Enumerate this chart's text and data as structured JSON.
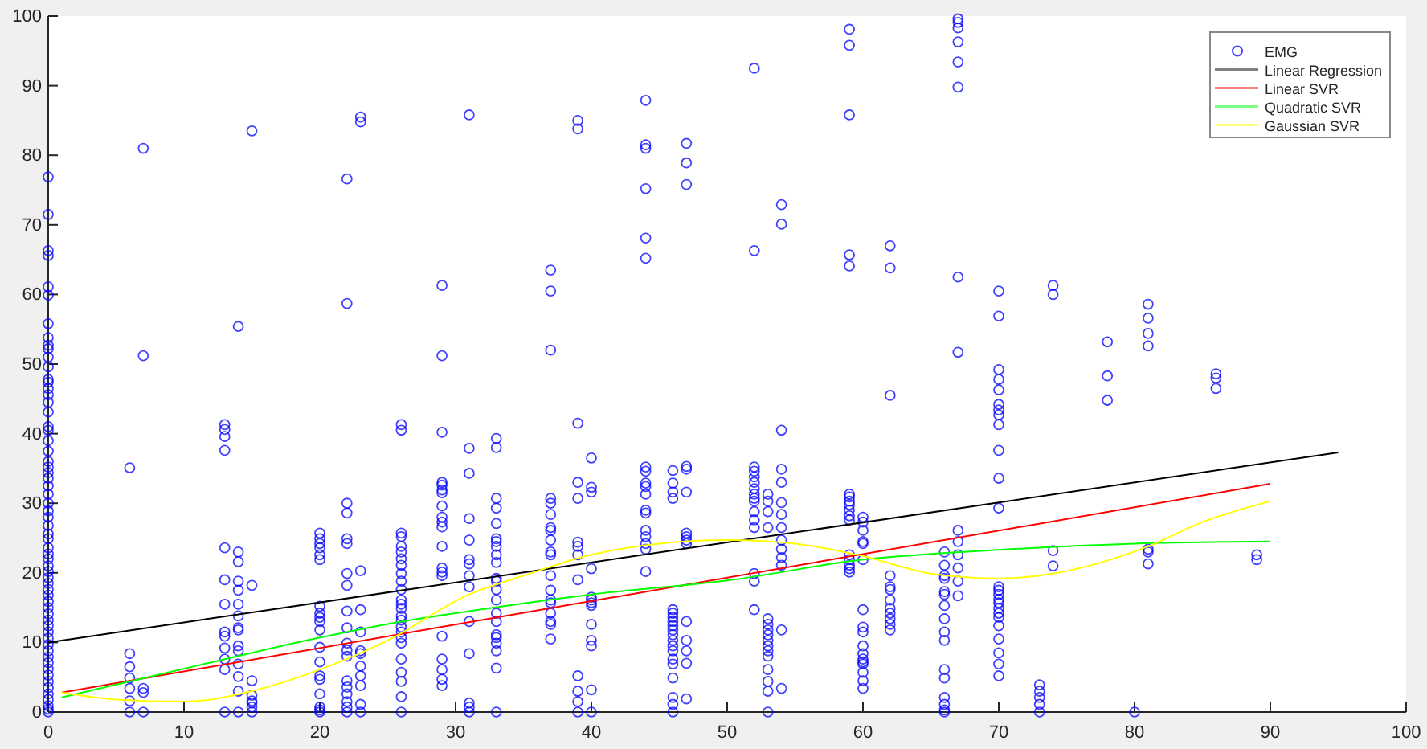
{
  "chart_data": {
    "type": "scatter",
    "xlim": [
      0,
      100
    ],
    "xticks": [
      0,
      10,
      20,
      30,
      40,
      50,
      60,
      70,
      80,
      90,
      100
    ],
    "ylim": [
      0,
      100
    ],
    "yticks": [
      0,
      10,
      20,
      30,
      40,
      50,
      60,
      70,
      80,
      90,
      100
    ],
    "grid": false,
    "legend": "top right",
    "series": [
      {
        "name": "EMG",
        "color": "#0000ff",
        "marker": "circle",
        "x": [
          0,
          0,
          0,
          0,
          0,
          0,
          0,
          0,
          0,
          0,
          0,
          0,
          0,
          0,
          0,
          0,
          0,
          0,
          0,
          0,
          0,
          0,
          0,
          0,
          0,
          0,
          0,
          0,
          0,
          0,
          0,
          0,
          0,
          0,
          0,
          0,
          0,
          0,
          0,
          0,
          0,
          0,
          0,
          0,
          0,
          0,
          0,
          0,
          0,
          0,
          0,
          0,
          0,
          0,
          0,
          0,
          0,
          0,
          0,
          0,
          0,
          0,
          0,
          6,
          6,
          6,
          6,
          6,
          6,
          6,
          7,
          7,
          7,
          7,
          7,
          13,
          13,
          13,
          13,
          13,
          13,
          13,
          13,
          13,
          13,
          13,
          13,
          13,
          14,
          14,
          14,
          14,
          14,
          14,
          14,
          14,
          14,
          14,
          14,
          14,
          14,
          14,
          14,
          15,
          15,
          15,
          15,
          15,
          15,
          15,
          15,
          20,
          20,
          20,
          20,
          20,
          20,
          20,
          20,
          20,
          20,
          20,
          20,
          20,
          20,
          20,
          20,
          20,
          20,
          20,
          22,
          22,
          22,
          22,
          22,
          22,
          22,
          22,
          22,
          22,
          22,
          22,
          22,
          22,
          22,
          22,
          22,
          22,
          22,
          23,
          23,
          23,
          23,
          23,
          23,
          23,
          23,
          23,
          23,
          23,
          23,
          26,
          26,
          26,
          26,
          26,
          26,
          26,
          26,
          26,
          26,
          26,
          26,
          26,
          26,
          26,
          26,
          26,
          26,
          26,
          26,
          26,
          26,
          26,
          26,
          26,
          29,
          29,
          29,
          29,
          29,
          29,
          29,
          29,
          29,
          29,
          29,
          29,
          29,
          29,
          29,
          29,
          29,
          29,
          29,
          29,
          31,
          31,
          31,
          31,
          31,
          31,
          31,
          31,
          31,
          31,
          31,
          31,
          31,
          31,
          33,
          33,
          33,
          33,
          33,
          33,
          33,
          33,
          33,
          33,
          33,
          33,
          33,
          33,
          33,
          33,
          33,
          33,
          33,
          33,
          33,
          33,
          37,
          37,
          37,
          37,
          37,
          37,
          37,
          37,
          37,
          37,
          37,
          37,
          37,
          37,
          37,
          37,
          37,
          37,
          37,
          39,
          39,
          39,
          39,
          39,
          39,
          39,
          39,
          39,
          39,
          39,
          39,
          39,
          40,
          40,
          40,
          40,
          40,
          40,
          40,
          40,
          40,
          40,
          40,
          40,
          40,
          44,
          44,
          44,
          44,
          44,
          44,
          44,
          44,
          44,
          44,
          44,
          44,
          44,
          44,
          44,
          44,
          44,
          44,
          46,
          46,
          46,
          46,
          46,
          46,
          46,
          46,
          46,
          46,
          46,
          46,
          46,
          46,
          46,
          46,
          46,
          46,
          46,
          46,
          47,
          47,
          47,
          47,
          47,
          47,
          47,
          47,
          47,
          47,
          47,
          47,
          47,
          47,
          47,
          52,
          52,
          52,
          52,
          52,
          52,
          52,
          52,
          52,
          52,
          52,
          52,
          52,
          52,
          52,
          52,
          53,
          53,
          53,
          53,
          53,
          53,
          53,
          53,
          53,
          53,
          53,
          53,
          53,
          53,
          53,
          53,
          54,
          54,
          54,
          54,
          54,
          54,
          54,
          54,
          54,
          54,
          54,
          54,
          54,
          54,
          59,
          59,
          59,
          59,
          59,
          59,
          59,
          59,
          59,
          59,
          59,
          59,
          59,
          59,
          59,
          59,
          59,
          60,
          60,
          60,
          60,
          60,
          60,
          60,
          60,
          60,
          60,
          60,
          60,
          60,
          60,
          60,
          60,
          60,
          62,
          62,
          62,
          62,
          62,
          62,
          62,
          62,
          62,
          62,
          62,
          62,
          66,
          66,
          66,
          66,
          66,
          66,
          66,
          66,
          66,
          66,
          66,
          66,
          66,
          66,
          66,
          66,
          67,
          67,
          67,
          67,
          67,
          67,
          67,
          67,
          67,
          67,
          67,
          67,
          67,
          67,
          70,
          70,
          70,
          70,
          70,
          70,
          70,
          70,
          70,
          70,
          70,
          70,
          70,
          70,
          70,
          70,
          70,
          70,
          70,
          70,
          70,
          70,
          70,
          70,
          70,
          73,
          73,
          73,
          73,
          73,
          74,
          74,
          74,
          74,
          78,
          78,
          78,
          80,
          81,
          81,
          81,
          81,
          81,
          81,
          81,
          86,
          86,
          86,
          89,
          89
        ],
        "values": [
          76.9,
          71.5,
          66.3,
          65.6,
          61.1,
          59.9,
          55.8,
          53.8,
          52.7,
          52.2,
          51.0,
          49.6,
          47.8,
          47.4,
          46.5,
          45.6,
          44.5,
          43.1,
          41.0,
          40.5,
          39.0,
          37.5,
          36.0,
          35.2,
          34.4,
          33.6,
          32.5,
          31.3,
          30.0,
          28.9,
          28.0,
          26.8,
          25.6,
          24.9,
          23.6,
          22.7,
          22.0,
          21.0,
          20.2,
          19.3,
          18.5,
          17.6,
          16.8,
          15.9,
          15.0,
          14.1,
          13.2,
          12.4,
          11.5,
          10.6,
          9.7,
          8.8,
          7.9,
          7.1,
          6.2,
          5.3,
          4.4,
          3.5,
          2.6,
          1.8,
          0.9,
          0.4,
          0,
          35.1,
          8.4,
          6.5,
          4.9,
          3.4,
          1.6,
          0,
          81,
          51.2,
          3.4,
          2.8,
          0,
          41.3,
          40.6,
          39.6,
          37.6,
          23.6,
          19,
          15.5,
          11.5,
          10.9,
          9.2,
          7.6,
          6.1,
          0,
          55.4,
          23,
          21.6,
          18.8,
          17.5,
          15.5,
          13.8,
          12.1,
          11.8,
          9.5,
          8.8,
          6.9,
          5.1,
          3,
          0,
          83.5,
          18.2,
          4.5,
          2.4,
          1.6,
          1.3,
          0.7,
          0,
          25.7,
          24.9,
          24.2,
          23.6,
          22.6,
          21.9,
          15.2,
          14.2,
          13.6,
          13,
          11.8,
          9.3,
          7.2,
          5.2,
          4.7,
          2.6,
          0.7,
          0.3,
          0,
          76.6,
          58.7,
          30,
          28.6,
          24.9,
          24.2,
          19.9,
          18.2,
          14.5,
          12.1,
          9.9,
          8.9,
          8,
          4.5,
          3.6,
          2.6,
          1.5,
          0.7,
          0,
          85.5,
          84.8,
          20.3,
          14.7,
          11.5,
          8.8,
          8.4,
          6.6,
          5.2,
          3.8,
          1.1,
          0,
          41.3,
          40.5,
          25.7,
          25.2,
          23.8,
          23,
          22,
          21.1,
          19.9,
          18.8,
          17.6,
          16.1,
          15.5,
          14.9,
          13.8,
          13.2,
          12.2,
          11.5,
          10.7,
          9.9,
          7.6,
          5.7,
          4.4,
          2.2,
          0,
          61.3,
          51.2,
          40.2,
          33,
          32.6,
          31.9,
          31.5,
          29.6,
          28,
          27.3,
          26.6,
          23.8,
          20.7,
          20.1,
          19.6,
          10.9,
          7.6,
          6.1,
          4.7,
          3.8,
          85.8,
          37.9,
          34.3,
          27.8,
          24.7,
          21.9,
          21.3,
          19.6,
          18,
          13,
          8.4,
          1.3,
          0.7,
          0,
          39.3,
          38,
          30.7,
          29.3,
          27.1,
          24.9,
          24.5,
          23.8,
          22.6,
          21.5,
          19.2,
          18.8,
          17.6,
          16.1,
          14.2,
          13,
          11.1,
          10.7,
          9.9,
          8.8,
          6.3,
          0,
          63.5,
          60.5,
          52,
          30.7,
          30,
          28.4,
          26.5,
          26.1,
          24.7,
          23,
          22.6,
          19.6,
          17.5,
          16.1,
          15.7,
          14.2,
          13,
          12.6,
          10.5,
          85,
          83.8,
          41.5,
          33,
          30.7,
          24.4,
          23.8,
          22.6,
          19,
          5.2,
          3,
          1.5,
          0,
          36.5,
          32.3,
          31.6,
          20.6,
          16.5,
          16.1,
          15.7,
          15.3,
          12.6,
          10.3,
          9.5,
          3.2,
          0,
          87.9,
          81.5,
          81,
          75.2,
          68.1,
          65.2,
          35.2,
          34.6,
          32.9,
          32.4,
          31.3,
          29,
          28.6,
          26.1,
          25.2,
          24.2,
          23.4,
          20.2,
          34.7,
          32.9,
          31.6,
          30.7,
          14.7,
          14.2,
          13.6,
          13,
          12.4,
          11.8,
          11.1,
          10.3,
          9.5,
          8.8,
          7.6,
          6.9,
          4.9,
          2.1,
          1.1,
          0,
          81.7,
          78.9,
          75.8,
          35.3,
          34.9,
          31.6,
          25.7,
          25.2,
          24.7,
          24.2,
          13,
          10.3,
          8.8,
          7,
          1.9,
          92.5,
          66.3,
          35.2,
          34.6,
          33.8,
          33,
          32.1,
          31.3,
          30.7,
          30.3,
          28.8,
          27.6,
          26.5,
          19.9,
          18.8,
          14.7,
          31.3,
          30.3,
          28.8,
          26.5,
          13.4,
          12.6,
          11.8,
          11.1,
          10.3,
          9.5,
          8.8,
          8,
          6.1,
          4.4,
          3,
          0,
          72.9,
          70.1,
          40.5,
          34.9,
          33,
          30.1,
          28.4,
          26.5,
          24.7,
          23.4,
          22.2,
          21.1,
          11.8,
          3.4,
          98.1,
          95.8,
          85.8,
          65.7,
          64.1,
          31.3,
          30.9,
          30.3,
          29.8,
          29,
          28.2,
          27.6,
          22.6,
          21.9,
          21.1,
          20.6,
          20.1,
          28,
          27.3,
          26.1,
          24.5,
          24.2,
          21.9,
          14.7,
          12.2,
          11.5,
          9.5,
          8.4,
          7.6,
          7.2,
          6.9,
          5.7,
          4.5,
          3.4,
          67,
          63.8,
          45.5,
          19.6,
          18,
          17.6,
          16.1,
          14.9,
          14.2,
          13.4,
          12.6,
          11.8,
          23,
          21.1,
          19.6,
          19.2,
          17.3,
          16.9,
          15.3,
          13.4,
          11.5,
          10.3,
          6.1,
          4.9,
          2.1,
          1.1,
          0.3,
          0,
          99.6,
          99.1,
          98.3,
          96.3,
          93.4,
          89.8,
          62.5,
          51.7,
          26.1,
          24.5,
          22.6,
          20.7,
          18.8,
          16.7,
          60.5,
          56.9,
          49.2,
          47.8,
          46.3,
          44.2,
          43.4,
          42.7,
          41.3,
          37.6,
          33.6,
          29.3,
          18,
          17.5,
          16.9,
          16.2,
          15.7,
          14.9,
          14.2,
          13.6,
          12.4,
          10.5,
          8.5,
          6.9,
          5.2,
          3.9,
          3,
          2.1,
          1.1,
          0,
          61.3,
          60,
          23.2,
          21,
          53.2,
          48.3,
          44.8,
          0,
          58.6,
          56.6,
          54.4,
          52.6,
          23.4,
          23,
          21.3,
          48.6,
          48,
          46.5,
          22.6,
          21.9
        ]
      },
      {
        "name": "Linear Regression",
        "type": "line",
        "color": "#000000",
        "x": [
          0,
          95
        ],
        "values": [
          10,
          37.3
        ]
      },
      {
        "name": "Linear SVR",
        "type": "line",
        "color": "#ff0000",
        "x": [
          1,
          90
        ],
        "values": [
          2.8,
          32.8
        ]
      },
      {
        "name": "Quadratic SVR",
        "type": "line",
        "color": "#00ff00",
        "x": [
          1,
          13,
          20,
          26,
          31,
          40,
          50,
          60,
          70,
          80,
          90
        ],
        "values": [
          2.1,
          7.6,
          10.7,
          13,
          14.5,
          16.9,
          18.9,
          21.9,
          23.3,
          24.2,
          24.5
        ]
      },
      {
        "name": "Gaussian SVR",
        "type": "line",
        "color": "#ffff00",
        "x": [
          1,
          5,
          10,
          15,
          20,
          25,
          31,
          35,
          40,
          45,
          50,
          55,
          60,
          65,
          70,
          74,
          81,
          85,
          90
        ],
        "values": [
          2.8,
          1.8,
          1.5,
          3,
          6.1,
          10.3,
          16.9,
          19.6,
          22.6,
          24.2,
          24.7,
          24.2,
          22.4,
          19.9,
          19.2,
          19.9,
          23.8,
          27.3,
          30.3
        ]
      }
    ]
  }
}
